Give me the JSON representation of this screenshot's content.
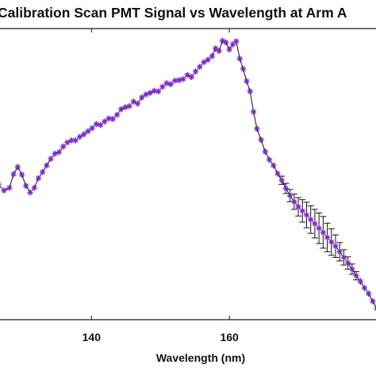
{
  "chart_data": {
    "type": "scatter",
    "title": "Calibration Scan PMT Signal vs Wavelength at Arm A",
    "xlabel": "Wavelength (nm)",
    "ylabel": "",
    "xlim": [
      126.5,
      181.5
    ],
    "x_ticks": [
      140,
      160
    ],
    "x_tick_labels": [
      "140",
      "160"
    ],
    "grid": false,
    "marker": "asterisk",
    "marker_color": "#7a29c8",
    "line_color": "#111111",
    "errorbar_color": "#111111",
    "series": [
      {
        "x": [
          126.5,
          127.3,
          128.1,
          128.7,
          129.3,
          129.9,
          130.5,
          131.1,
          131.7,
          132.3,
          132.9,
          133.5,
          134.1,
          134.7,
          135.3,
          135.9,
          136.5,
          137.1,
          137.7,
          138.3,
          138.9,
          139.5,
          140.1,
          140.7,
          141.3,
          141.9,
          142.5,
          143.1,
          143.7,
          144.3,
          144.9,
          145.5,
          146.1,
          146.7,
          147.3,
          147.9,
          148.5,
          149.1,
          149.7,
          150.3,
          150.9,
          151.5,
          152.1,
          152.7,
          153.3,
          153.9,
          154.5,
          155.1,
          155.7,
          156.3,
          156.9,
          157.5,
          158.0,
          158.5,
          159.0,
          159.5,
          160.0,
          160.5,
          161.0,
          161.5,
          162.0,
          162.5,
          163.0,
          163.5,
          164.0,
          164.6,
          165.2,
          165.8,
          166.4,
          167.0,
          167.6,
          168.2,
          168.8,
          169.4,
          170.0,
          170.6,
          171.2,
          171.8,
          172.4,
          173.0,
          173.6,
          174.2,
          174.8,
          175.4,
          176.0,
          176.6,
          177.2,
          177.8,
          178.4,
          179.0,
          179.6,
          180.2,
          180.8,
          181.4
        ],
        "y": [
          0.565,
          0.553,
          0.558,
          0.585,
          0.599,
          0.584,
          0.562,
          0.549,
          0.558,
          0.577,
          0.589,
          0.602,
          0.615,
          0.625,
          0.628,
          0.639,
          0.647,
          0.651,
          0.651,
          0.658,
          0.663,
          0.669,
          0.675,
          0.683,
          0.681,
          0.688,
          0.694,
          0.693,
          0.701,
          0.712,
          0.716,
          0.718,
          0.727,
          0.723,
          0.735,
          0.741,
          0.744,
          0.748,
          0.747,
          0.756,
          0.763,
          0.761,
          0.768,
          0.769,
          0.771,
          0.779,
          0.775,
          0.786,
          0.795,
          0.804,
          0.809,
          0.816,
          0.831,
          0.826,
          0.846,
          0.843,
          0.829,
          0.839,
          0.845,
          0.811,
          0.791,
          0.767,
          0.747,
          0.707,
          0.674,
          0.652,
          0.629,
          0.613,
          0.602,
          0.586,
          0.573,
          0.557,
          0.543,
          0.531,
          0.521,
          0.513,
          0.505,
          0.496,
          0.488,
          0.479,
          0.471,
          0.461,
          0.452,
          0.444,
          0.433,
          0.422,
          0.411,
          0.399,
          0.386,
          0.375,
          0.362,
          0.351,
          0.336,
          0.322
        ],
        "err": [
          0.006,
          0.006,
          0.006,
          0.006,
          0.006,
          0.006,
          0.006,
          0.006,
          0.006,
          0.006,
          0.006,
          0.006,
          0.006,
          0.006,
          0.006,
          0.006,
          0.006,
          0.006,
          0.006,
          0.006,
          0.006,
          0.006,
          0.006,
          0.006,
          0.006,
          0.006,
          0.006,
          0.006,
          0.006,
          0.006,
          0.006,
          0.006,
          0.006,
          0.006,
          0.006,
          0.006,
          0.006,
          0.006,
          0.006,
          0.006,
          0.006,
          0.006,
          0.006,
          0.006,
          0.006,
          0.006,
          0.006,
          0.006,
          0.006,
          0.006,
          0.006,
          0.006,
          0.006,
          0.006,
          0.006,
          0.006,
          0.006,
          0.006,
          0.006,
          0.006,
          0.006,
          0.006,
          0.006,
          0.006,
          0.006,
          0.006,
          0.006,
          0.006,
          0.006,
          0.006,
          0.008,
          0.01,
          0.012,
          0.015,
          0.018,
          0.022,
          0.025,
          0.027,
          0.028,
          0.03,
          0.031,
          0.028,
          0.026,
          0.022,
          0.018,
          0.015,
          0.012,
          0.01,
          0.008,
          0.007,
          0.006,
          0.006,
          0.006,
          0.006
        ]
      }
    ]
  }
}
